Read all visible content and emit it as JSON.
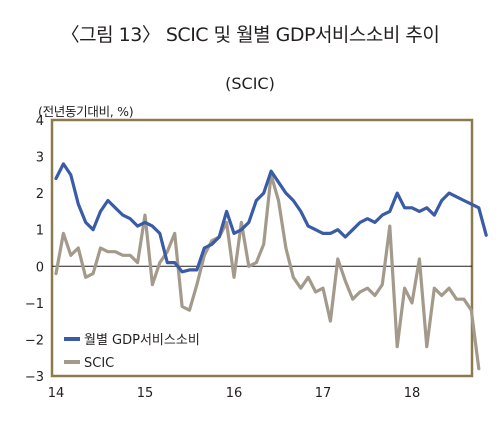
{
  "figure_title": "〈그림 13〉 SCIC 및 월별 GDP서비스소비 추이",
  "chart_data": {
    "type": "line",
    "title": "(SCIC)",
    "ylabel": "(전년동기대비, %)",
    "xlabel": "",
    "x_tick_labels": [
      "14",
      "15",
      "16",
      "17",
      "18"
    ],
    "y_ticks": [
      4,
      3,
      2,
      1,
      0,
      -1,
      -2,
      -3
    ],
    "ylim": [
      -3,
      4
    ],
    "x_start": 2014.0,
    "x_step_months": 1,
    "grid": false,
    "legend": "bottom-left",
    "series": [
      {
        "name": "월별 GDP서비스소비",
        "color": "#3a5ba6",
        "values": [
          2.4,
          2.8,
          2.5,
          1.7,
          1.2,
          1.0,
          1.5,
          1.8,
          1.6,
          1.4,
          1.3,
          1.1,
          1.2,
          1.1,
          0.9,
          0.1,
          0.1,
          -0.15,
          -0.1,
          -0.1,
          0.5,
          0.6,
          0.8,
          1.5,
          0.9,
          1.0,
          1.2,
          1.8,
          2.0,
          2.6,
          2.3,
          2.0,
          1.8,
          1.5,
          1.1,
          1.0,
          0.9,
          0.9,
          1.0,
          0.8,
          1.0,
          1.2,
          1.3,
          1.2,
          1.4,
          1.5,
          2.0,
          1.6,
          1.6,
          1.5,
          1.6,
          1.4,
          1.8,
          2.0,
          1.9,
          1.8,
          1.7,
          1.6,
          0.85
        ]
      },
      {
        "name": "SCIC",
        "color": "#a39a8c",
        "values": [
          -0.2,
          0.9,
          0.3,
          0.5,
          -0.3,
          -0.2,
          0.5,
          0.4,
          0.4,
          0.3,
          0.3,
          0.1,
          1.4,
          -0.5,
          0.1,
          0.4,
          0.9,
          -1.1,
          -1.2,
          -0.5,
          0.3,
          0.7,
          0.8,
          1.2,
          -0.3,
          1.2,
          0.0,
          0.1,
          0.6,
          2.5,
          1.8,
          0.5,
          -0.3,
          -0.6,
          -0.3,
          -0.7,
          -0.6,
          -1.5,
          0.2,
          -0.4,
          -0.9,
          -0.7,
          -0.6,
          -0.8,
          -0.5,
          1.1,
          -2.2,
          -0.6,
          -1.0,
          0.2,
          -2.2,
          -0.6,
          -0.8,
          -0.6,
          -0.9,
          -0.9,
          -1.2,
          -2.8
        ]
      }
    ]
  }
}
